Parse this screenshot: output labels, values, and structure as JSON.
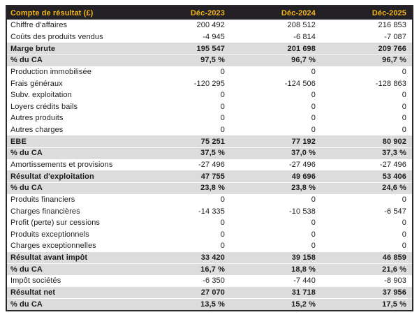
{
  "table": {
    "title": "Compte de résultat (£)",
    "columns": [
      "Déc-2023",
      "Déc-2024",
      "Déc-2025"
    ],
    "colors": {
      "page_bg": "#ffffff",
      "header_bg": "#232125",
      "header_text": "#f0b41e",
      "band_bg": "#dcdcdc",
      "border_color": "#29272b",
      "text_color": "#1d1d1f"
    },
    "rows": [
      {
        "label": "Chiffre d'affaires",
        "values": [
          "200 492",
          "208 512",
          "216 853"
        ],
        "emphasis": false
      },
      {
        "label": "Coûts des produits vendus",
        "values": [
          "-4 945",
          "-6 814",
          "-7 087"
        ],
        "emphasis": false
      },
      {
        "label": "Marge brute",
        "values": [
          "195 547",
          "201 698",
          "209 766"
        ],
        "emphasis": true
      },
      {
        "label": "% du CA",
        "values": [
          "97,5 %",
          "96,7 %",
          "96,7 %"
        ],
        "emphasis": true
      },
      {
        "label": "Production immobilisée",
        "values": [
          "0",
          "0",
          "0"
        ],
        "emphasis": false
      },
      {
        "label": "Frais généraux",
        "values": [
          "-120 295",
          "-124 506",
          "-128 863"
        ],
        "emphasis": false
      },
      {
        "label": "Subv. exploitation",
        "values": [
          "0",
          "0",
          "0"
        ],
        "emphasis": false
      },
      {
        "label": "Loyers crédits bails",
        "values": [
          "0",
          "0",
          "0"
        ],
        "emphasis": false
      },
      {
        "label": "Autres produits",
        "values": [
          "0",
          "0",
          "0"
        ],
        "emphasis": false
      },
      {
        "label": "Autres charges",
        "values": [
          "0",
          "0",
          "0"
        ],
        "emphasis": false
      },
      {
        "label": "EBE",
        "values": [
          "75 251",
          "77 192",
          "80 902"
        ],
        "emphasis": true
      },
      {
        "label": "% du CA",
        "values": [
          "37,5 %",
          "37,0 %",
          "37,3 %"
        ],
        "emphasis": true
      },
      {
        "label": "Amortissements et provisions",
        "values": [
          "-27 496",
          "-27 496",
          "-27 496"
        ],
        "emphasis": false
      },
      {
        "label": "Résultat d'exploitation",
        "values": [
          "47 755",
          "49 696",
          "53 406"
        ],
        "emphasis": true
      },
      {
        "label": "% du CA",
        "values": [
          "23,8 %",
          "23,8 %",
          "24,6 %"
        ],
        "emphasis": true
      },
      {
        "label": "Produits financiers",
        "values": [
          "0",
          "0",
          "0"
        ],
        "emphasis": false
      },
      {
        "label": "Charges financières",
        "values": [
          "-14 335",
          "-10 538",
          "-6 547"
        ],
        "emphasis": false
      },
      {
        "label": "Profit (perte) sur cessions",
        "values": [
          "0",
          "0",
          "0"
        ],
        "emphasis": false
      },
      {
        "label": "Produits exceptionnels",
        "values": [
          "0",
          "0",
          "0"
        ],
        "emphasis": false
      },
      {
        "label": "Charges exceptionnelles",
        "values": [
          "0",
          "0",
          "0"
        ],
        "emphasis": false
      },
      {
        "label": "Résultat avant impôt",
        "values": [
          "33 420",
          "39 158",
          "46 859"
        ],
        "emphasis": true
      },
      {
        "label": "% du CA",
        "values": [
          "16,7 %",
          "18,8 %",
          "21,6 %"
        ],
        "emphasis": true
      },
      {
        "label": "Impôt sociétés",
        "values": [
          "-6 350",
          "-7 440",
          "-8 903"
        ],
        "emphasis": false
      },
      {
        "label": "Résultat net",
        "values": [
          "27 070",
          "31 718",
          "37 956"
        ],
        "emphasis": true
      },
      {
        "label": "% du CA",
        "values": [
          "13,5 %",
          "15,2 %",
          "17,5 %"
        ],
        "emphasis": true
      }
    ]
  }
}
